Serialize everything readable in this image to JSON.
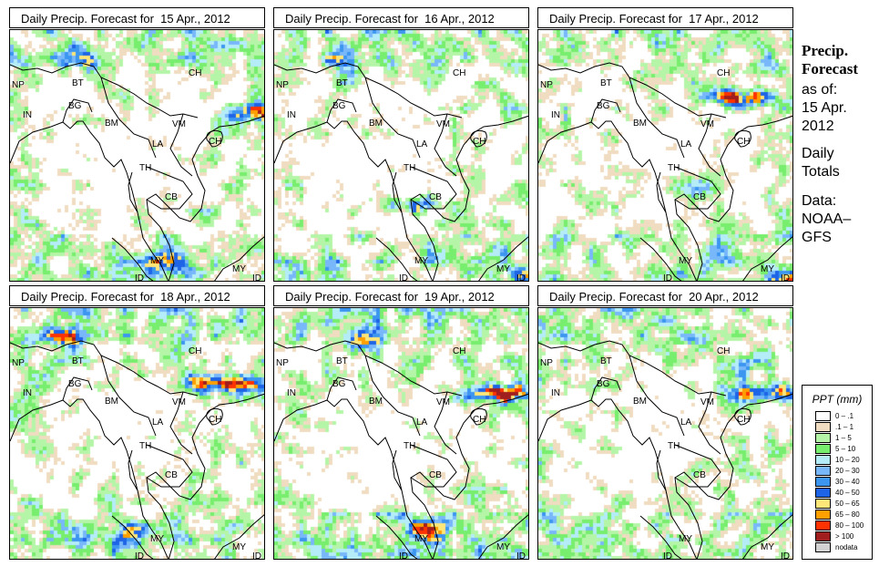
{
  "panels": [
    {
      "title": "Daily Precip. Forecast for  15 Apr., 2012",
      "intensity": 0.9
    },
    {
      "title": "Daily Precip. Forecast for  16 Apr., 2012",
      "intensity": 0.8
    },
    {
      "title": "Daily Precip. Forecast for  17 Apr., 2012",
      "intensity": 1.0
    },
    {
      "title": "Daily Precip. Forecast for  18 Apr., 2012",
      "intensity": 1.2
    },
    {
      "title": "Daily Precip. Forecast for  19 Apr., 2012",
      "intensity": 1.2
    },
    {
      "title": "Daily Precip. Forecast for  20 Apr., 2012",
      "intensity": 1.0
    }
  ],
  "map_labels": {
    "np": "NP",
    "bt": "BT",
    "bg": "BG",
    "in": "IN",
    "bm": "BM",
    "ch": "CH",
    "vm": "VM",
    "la": "LA",
    "th": "TH",
    "cb": "CB",
    "hainan": "CH",
    "my1": "MY",
    "id1": "ID",
    "my2": "MY",
    "id2": "ID"
  },
  "side": {
    "title1": "Precip.",
    "title2": "Forecast",
    "asof": "as of:",
    "date1": "15 Apr.",
    "date2": "2012",
    "totals1": "Daily",
    "totals2": "Totals",
    "data1": "Data:",
    "data2": "NOAA–",
    "data3": "GFS"
  },
  "legend": {
    "title": "PPT (mm)",
    "items": [
      {
        "label": "0 – .1",
        "color": "#ffffff"
      },
      {
        "label": ".1 – 1",
        "color": "#f0dcc0"
      },
      {
        "label": "1 – 5",
        "color": "#b4f5a8"
      },
      {
        "label": "5 – 10",
        "color": "#78ee6e"
      },
      {
        "label": "10 – 20",
        "color": "#b4ecf8"
      },
      {
        "label": "20 – 30",
        "color": "#78b8fa"
      },
      {
        "label": "30 – 40",
        "color": "#3c96f0"
      },
      {
        "label": "40 – 50",
        "color": "#1e64e6"
      },
      {
        "label": "50 – 65",
        "color": "#ffe678"
      },
      {
        "label": "65 – 80",
        "color": "#ffa000"
      },
      {
        "label": "80 – 100",
        "color": "#ff3200"
      },
      {
        "label": "> 100",
        "color": "#a01e1e"
      },
      {
        "label": "nodata",
        "color": "#d2d2d2"
      }
    ]
  }
}
